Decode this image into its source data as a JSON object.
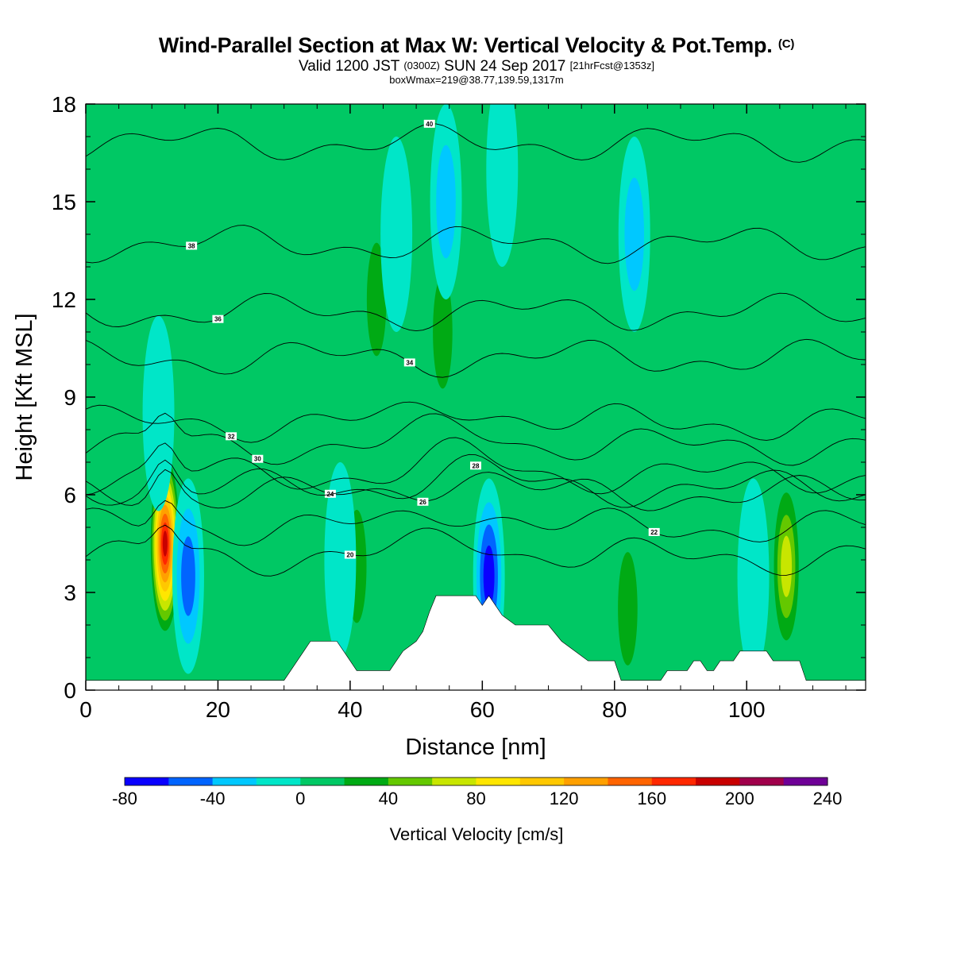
{
  "title": {
    "main": "Wind-Parallel Section at Max W: Vertical Velocity & Pot.Temp.",
    "main_mark": "(C)",
    "valid_prefix": "Valid 1200 JST",
    "valid_utc": "(0300Z)",
    "valid_date": "SUN 24 Sep 2017",
    "forecast": "[21hrFcst@1353z]",
    "box": "boxWmax=219@38.77,139.59,1317m"
  },
  "chart_data": {
    "type": "heatmap",
    "xlabel": "Distance [nm]",
    "ylabel": "Height [Kft MSL]",
    "xlim": [
      0,
      118
    ],
    "ylim": [
      0,
      18
    ],
    "x_ticks": [
      "0",
      "20",
      "40",
      "60",
      "80",
      "100"
    ],
    "x_tick_values": [
      0,
      20,
      40,
      60,
      80,
      100
    ],
    "y_ticks": [
      "0",
      "3",
      "6",
      "9",
      "12",
      "15",
      "18"
    ],
    "y_tick_values": [
      0,
      3,
      6,
      9,
      12,
      15,
      18
    ],
    "background_value_cm_s": 0,
    "terrain_kft": [
      [
        0,
        0.3
      ],
      [
        30,
        0.3
      ],
      [
        31,
        0.6
      ],
      [
        32,
        0.9
      ],
      [
        33,
        1.2
      ],
      [
        34,
        1.5
      ],
      [
        38,
        1.5
      ],
      [
        39,
        1.2
      ],
      [
        40,
        0.9
      ],
      [
        41,
        0.6
      ],
      [
        46,
        0.6
      ],
      [
        47,
        0.9
      ],
      [
        48,
        1.2
      ],
      [
        50,
        1.5
      ],
      [
        51,
        1.8
      ],
      [
        52,
        2.4
      ],
      [
        53,
        2.9
      ],
      [
        59,
        2.9
      ],
      [
        60,
        2.6
      ],
      [
        61,
        2.9
      ],
      [
        62,
        2.6
      ],
      [
        63,
        2.3
      ],
      [
        65,
        2.0
      ],
      [
        70,
        2.0
      ],
      [
        72,
        1.5
      ],
      [
        74,
        1.2
      ],
      [
        76,
        0.9
      ],
      [
        80,
        0.9
      ],
      [
        81,
        0.3
      ],
      [
        87,
        0.3
      ],
      [
        88,
        0.6
      ],
      [
        91,
        0.6
      ],
      [
        92,
        0.9
      ],
      [
        93,
        0.9
      ],
      [
        94,
        0.6
      ],
      [
        95,
        0.6
      ],
      [
        96,
        0.9
      ],
      [
        98,
        0.9
      ],
      [
        99,
        1.2
      ],
      [
        103,
        1.2
      ],
      [
        104,
        0.9
      ],
      [
        108,
        0.9
      ],
      [
        109,
        0.3
      ],
      [
        118,
        0.3
      ]
    ],
    "updraft_cells_cm_s": [
      {
        "x": 12,
        "z": 4.5,
        "peak": 219
      },
      {
        "x": 106,
        "z": 3.8,
        "peak": 90
      },
      {
        "x": 41,
        "z": 3.8,
        "peak": 50
      },
      {
        "x": 82,
        "z": 2.5,
        "peak": 50
      },
      {
        "x": 54,
        "z": 11,
        "peak": 40
      },
      {
        "x": 44,
        "z": 12,
        "peak": 40
      },
      {
        "x": 17,
        "z": 12,
        "peak": 30
      },
      {
        "x": 68,
        "z": 13,
        "peak": 30
      },
      {
        "x": 96,
        "z": 10,
        "peak": 30
      },
      {
        "x": 56,
        "z": 3,
        "peak": 30
      },
      {
        "x": 5,
        "z": 12,
        "peak": 20
      },
      {
        "x": 30,
        "z": 15,
        "peak": 20
      },
      {
        "x": 75,
        "z": 8,
        "peak": 20
      },
      {
        "x": 110,
        "z": 14,
        "peak": 20
      }
    ],
    "downdraft_cells_cm_s": [
      {
        "x": 61,
        "z": 3.5,
        "peak": -80
      },
      {
        "x": 15.5,
        "z": 3.5,
        "peak": -60
      },
      {
        "x": 54.5,
        "z": 15,
        "peak": -55
      },
      {
        "x": 83,
        "z": 14,
        "peak": -40
      },
      {
        "x": 38.5,
        "z": 4,
        "peak": -35
      },
      {
        "x": 47,
        "z": 14,
        "peak": -30
      },
      {
        "x": 101,
        "z": 3.5,
        "peak": -30
      },
      {
        "x": 11,
        "z": 8.5,
        "peak": -30
      },
      {
        "x": 63,
        "z": 16,
        "peak": -25
      }
    ],
    "theta_isentropes_c": [
      {
        "level": "20",
        "z": 4.1,
        "label_x": 40
      },
      {
        "level": "22",
        "z": 5.0,
        "label_x": 86
      },
      {
        "level": "24",
        "z": 6.0,
        "label_x": 37
      },
      {
        "level": "26",
        "z": 6.2,
        "label_x": 51
      },
      {
        "level": "28",
        "z": 6.6,
        "label_x": 59
      },
      {
        "level": "30",
        "z": 7.5,
        "label_x": 26
      },
      {
        "level": "32",
        "z": 8.2,
        "label_x": 22
      },
      {
        "level": "34",
        "z": 10.2,
        "label_x": 49
      },
      {
        "level": "36",
        "z": 11.6,
        "label_x": 20
      },
      {
        "level": "38",
        "z": 13.7,
        "label_x": 16
      },
      {
        "level": "40",
        "z": 16.8,
        "label_x": 52
      }
    ],
    "colorbar": {
      "title": "Vertical Velocity [cm/s]",
      "min": -80,
      "max": 240,
      "step": 20,
      "labels": [
        "-80",
        "-40",
        "0",
        "40",
        "80",
        "120",
        "160",
        "200",
        "240"
      ],
      "colors": [
        "#0a00ff",
        "#0064ff",
        "#00c8ff",
        "#00e6c8",
        "#00c864",
        "#00aa14",
        "#64c800",
        "#c8e600",
        "#ffe600",
        "#ffc800",
        "#ffa000",
        "#ff6400",
        "#ff2800",
        "#c80000",
        "#a0004b",
        "#6e0096"
      ]
    }
  }
}
